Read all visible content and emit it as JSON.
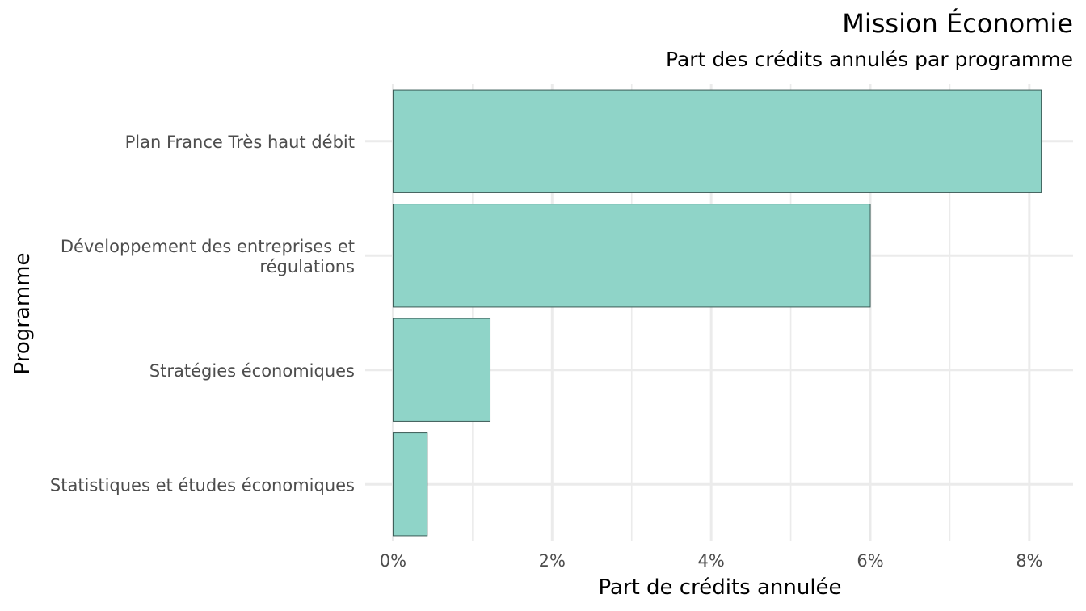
{
  "chart_data": {
    "type": "bar",
    "orientation": "horizontal",
    "title": "Mission Économie",
    "subtitle": "Part des crédits annulés par programme",
    "xlabel": "Part de crédits annulée",
    "ylabel": "Programme",
    "categories": [
      [
        "Plan France Très haut débit"
      ],
      [
        "Développement des entreprises et",
        "régulations"
      ],
      [
        "Stratégies économiques"
      ],
      [
        "Statistiques et études économiques"
      ]
    ],
    "values": [
      8.15,
      6.0,
      1.22,
      0.43
    ],
    "unit": "%",
    "xlim": [
      -0.35,
      8.55
    ],
    "xticks": [
      0,
      2,
      4,
      6,
      8
    ],
    "xtick_labels": [
      "0%",
      "2%",
      "4%",
      "6%",
      "8%"
    ],
    "grid": true,
    "legend": "none",
    "colors": {
      "bar_fill": "#8fd4c8",
      "bar_stroke": "#3a5a55",
      "grid": "#ebebeb"
    }
  }
}
